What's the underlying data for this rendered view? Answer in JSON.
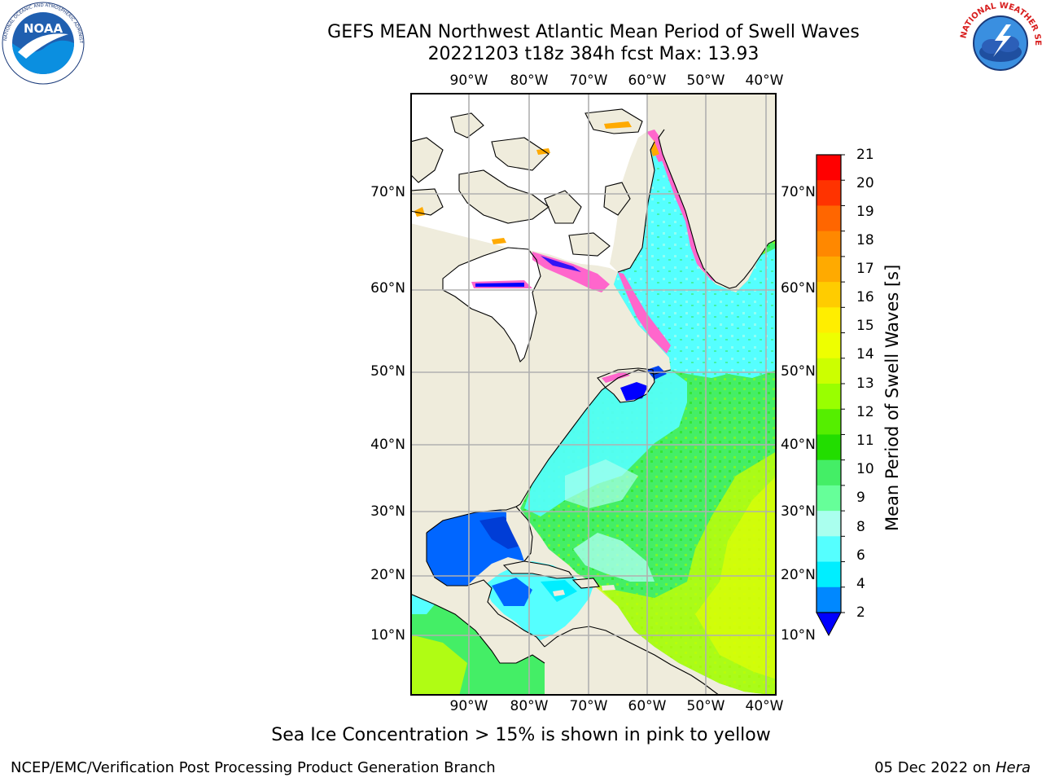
{
  "header": {
    "title_line1": "GEFS MEAN Northwest Atlantic Mean Period of Swell Waves",
    "title_line2": "20221203 t18z 384h fcst   Max: 13.93"
  },
  "logos": {
    "left": "NOAA",
    "left_ring_text": "NATIONAL OCEANIC AND ATMOSPHERIC ADMINISTRATION · U.S. DEPARTMENT OF COMMERCE",
    "right_ring_text": "NATIONAL WEATHER SERVICE"
  },
  "map": {
    "lon_labels": [
      "90°W",
      "80°W",
      "70°W",
      "60°W",
      "50°W",
      "40°W"
    ],
    "lat_labels": [
      "70°N",
      "60°N",
      "50°N",
      "40°N",
      "30°N",
      "20°N",
      "10°N"
    ],
    "colors": {
      "land": "#efecdc",
      "ice_free_land": "#ffffff",
      "grid": "#b0b0b0"
    }
  },
  "colorbar": {
    "label": "Mean Period of Swell Waves [s]",
    "ticks": [
      "21",
      "20",
      "19",
      "18",
      "17",
      "16",
      "15",
      "14",
      "13",
      "12",
      "11",
      "10",
      "9",
      "8",
      "6",
      "4",
      "2"
    ],
    "colors": [
      "#ff0000",
      "#ff3300",
      "#ff6600",
      "#ff8800",
      "#ffaa00",
      "#ffcc00",
      "#ffee00",
      "#eeff00",
      "#ccff00",
      "#99ff00",
      "#55ee00",
      "#22dd00",
      "#44ee66",
      "#66ff99",
      "#aaffee",
      "#55ffff",
      "#00eeff",
      "#0088ff",
      "#0000ff"
    ]
  },
  "caption": "Sea Ice Concentration > 15% is shown in pink to yellow",
  "footer": {
    "left": "NCEP/EMC/Verification Post Processing Product Generation Branch",
    "right_prefix": "05 Dec 2022 on ",
    "right_italic": "Hera"
  }
}
